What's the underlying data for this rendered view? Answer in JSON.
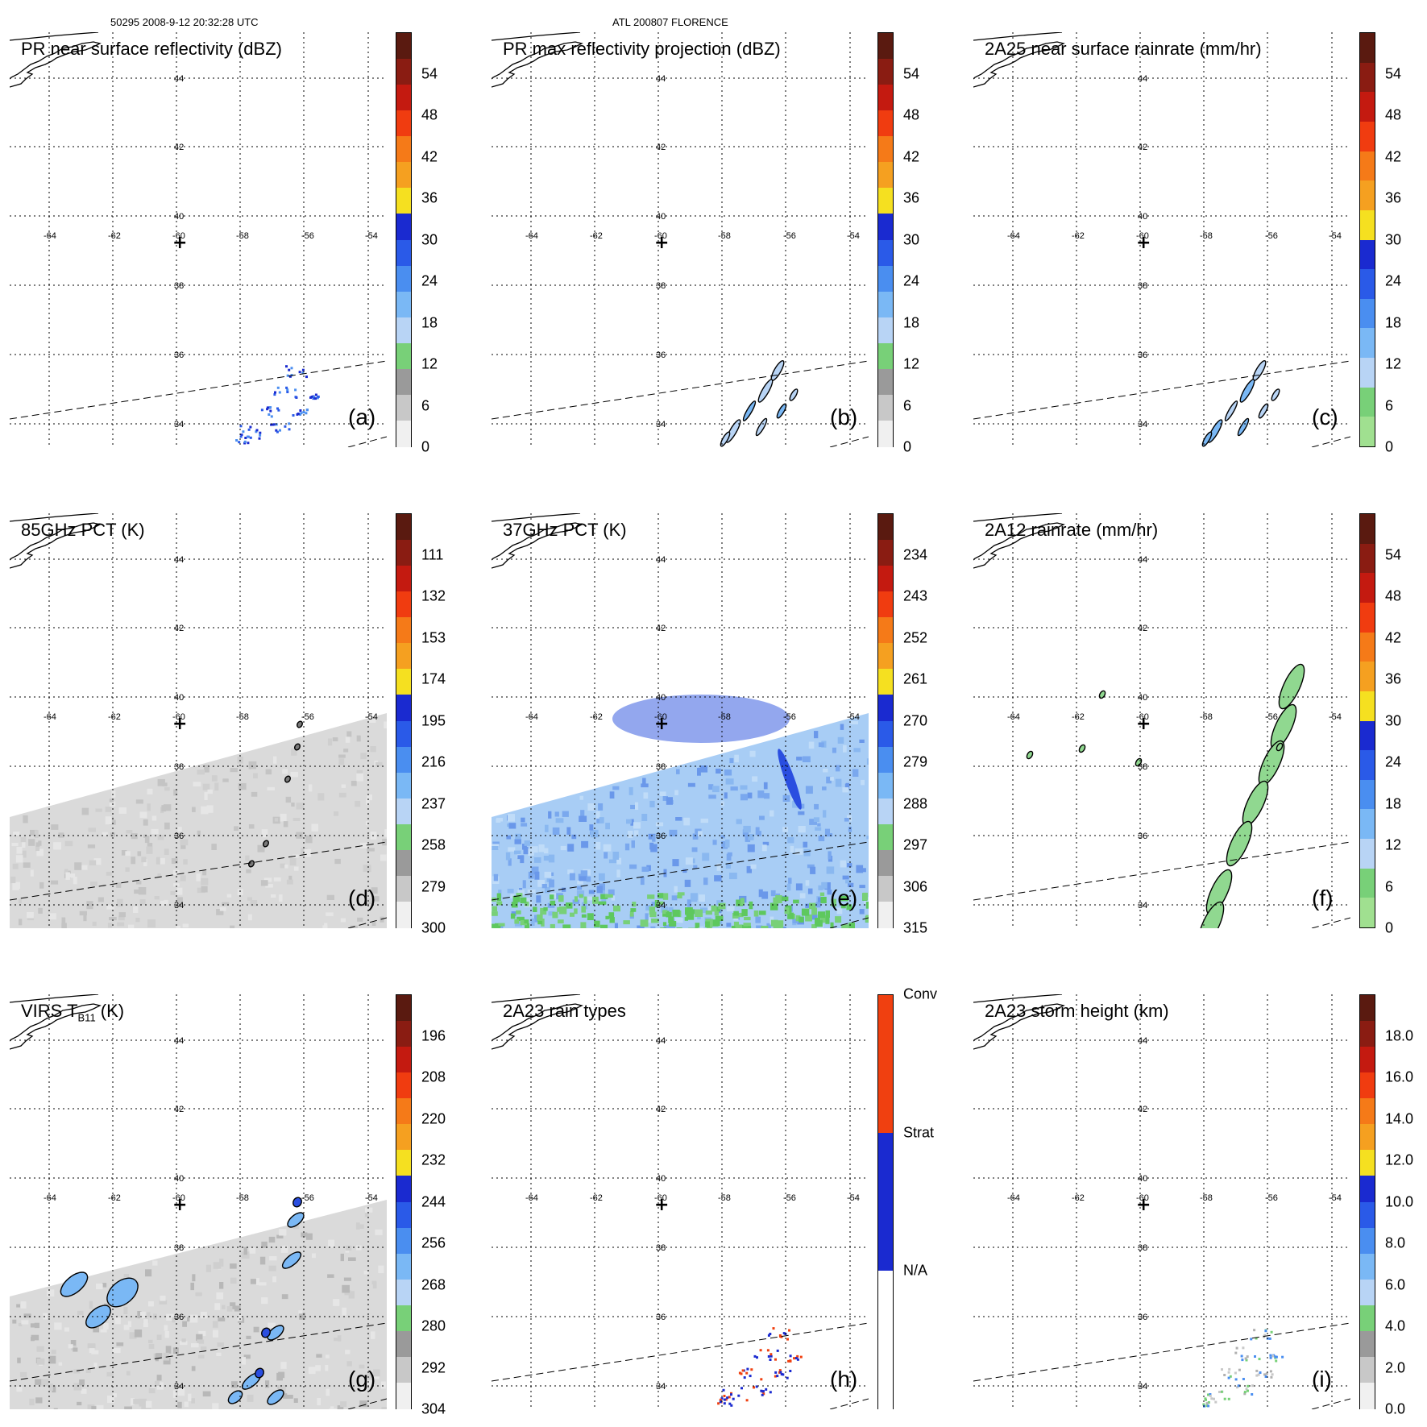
{
  "header": {
    "left": "50295 2008-9-12 20:32:28 UTC",
    "center": "ATL 200807 FLORENCE"
  },
  "map": {
    "longitudes": [
      "-64",
      "-62",
      "-60",
      "-58",
      "-56",
      "-54"
    ],
    "latitudes": [
      "44",
      "42",
      "40",
      "38",
      "36",
      "34"
    ],
    "center_marker": "+"
  },
  "panels": [
    {
      "id": "a",
      "title": "PR near surface reflectivity (dBZ)",
      "label": "(a)",
      "ticks": [
        "54",
        "48",
        "42",
        "36",
        "30",
        "24",
        "18",
        "12",
        "6",
        "0"
      ],
      "colors": [
        "#5a1a10",
        "#8a1c12",
        "#c41a10",
        "#f03c10",
        "#f57a18",
        "#f5a020",
        "#f5e020",
        "#1a2ad0",
        "#2a5ae8",
        "#4a8ef0",
        "#7ab8f5",
        "#b8d4f5",
        "#78d078",
        "#9a9a9a",
        "#c8c8c8",
        "#f0f0f0"
      ],
      "content": "sparse"
    },
    {
      "id": "b",
      "title": "PR max reflectivity projection (dBZ)",
      "label": "(b)",
      "ticks": [
        "54",
        "48",
        "42",
        "36",
        "30",
        "24",
        "18",
        "12",
        "6",
        "0"
      ],
      "colors": [
        "#5a1a10",
        "#8a1c12",
        "#c41a10",
        "#f03c10",
        "#f57a18",
        "#f5a020",
        "#f5e020",
        "#1a2ad0",
        "#2a5ae8",
        "#4a8ef0",
        "#7ab8f5",
        "#b8d4f5",
        "#78d078",
        "#9a9a9a",
        "#c8c8c8",
        "#f0f0f0"
      ],
      "content": "sparse-outline"
    },
    {
      "id": "c",
      "title": "2A25 near surface rainrate (mm/hr)",
      "label": "(c)",
      "ticks": [
        "54",
        "48",
        "42",
        "36",
        "30",
        "24",
        "18",
        "12",
        "6",
        "0"
      ],
      "colors": [
        "#5a1a10",
        "#8a1c12",
        "#c41a10",
        "#f03c10",
        "#f57a18",
        "#f5a020",
        "#f5e020",
        "#1a2ad0",
        "#2a5ae8",
        "#4a8ef0",
        "#7ab8f5",
        "#b8d4f5",
        "#78d078",
        "#a0e090"
      ],
      "content": "sparse-outline"
    },
    {
      "id": "d",
      "title": "85GHz PCT (K)",
      "label": "(d)",
      "ticks": [
        "111",
        "132",
        "153",
        "174",
        "195",
        "216",
        "237",
        "258",
        "279",
        "300"
      ],
      "colors": [
        "#5a1a10",
        "#8a1c12",
        "#c41a10",
        "#f03c10",
        "#f57a18",
        "#f5a020",
        "#f5e020",
        "#1a2ad0",
        "#2a5ae8",
        "#4a8ef0",
        "#7ab8f5",
        "#b8d4f5",
        "#78d078",
        "#9a9a9a",
        "#c8c8c8",
        "#f0f0f0"
      ],
      "content": "swath-gray"
    },
    {
      "id": "e",
      "title": "37GHz PCT (K)",
      "label": "(e)",
      "ticks": [
        "234",
        "243",
        "252",
        "261",
        "270",
        "279",
        "288",
        "297",
        "306",
        "315"
      ],
      "colors": [
        "#5a1a10",
        "#8a1c12",
        "#c41a10",
        "#f03c10",
        "#f57a18",
        "#f5a020",
        "#f5e020",
        "#1a2ad0",
        "#2a5ae8",
        "#4a8ef0",
        "#7ab8f5",
        "#b8d4f5",
        "#78d078",
        "#9a9a9a",
        "#c8c8c8",
        "#f0f0f0"
      ],
      "content": "swath-blue"
    },
    {
      "id": "f",
      "title": "2A12 rainrate (mm/hr)",
      "label": "(f)",
      "ticks": [
        "54",
        "48",
        "42",
        "36",
        "30",
        "24",
        "18",
        "12",
        "6",
        "0"
      ],
      "colors": [
        "#5a1a10",
        "#8a1c12",
        "#c41a10",
        "#f03c10",
        "#f57a18",
        "#f5a020",
        "#f5e020",
        "#1a2ad0",
        "#2a5ae8",
        "#4a8ef0",
        "#7ab8f5",
        "#b8d4f5",
        "#78d078",
        "#a0e090"
      ],
      "content": "band-green"
    },
    {
      "id": "g",
      "title": "VIRS T",
      "title_sub": "B11",
      "title_tail": " (K)",
      "label": "(g)",
      "ticks": [
        "196",
        "208",
        "220",
        "232",
        "244",
        "256",
        "268",
        "280",
        "292",
        "304"
      ],
      "colors": [
        "#5a1a10",
        "#8a1c12",
        "#c41a10",
        "#f03c10",
        "#f57a18",
        "#f5a020",
        "#f5e020",
        "#1a2ad0",
        "#2a5ae8",
        "#4a8ef0",
        "#7ab8f5",
        "#b8d4f5",
        "#78d078",
        "#9a9a9a",
        "#c8c8c8",
        "#f0f0f0"
      ],
      "content": "swath-ir"
    },
    {
      "id": "h",
      "title": "2A23 rain types",
      "label": "(h)",
      "ticks": [
        "Conv",
        "Strat",
        "N/A"
      ],
      "colors": [
        "#f04010",
        "#1a2ad0",
        "#ffffff"
      ],
      "content": "sparse-types"
    },
    {
      "id": "i",
      "title": "2A23 storm height (km)",
      "label": "(i)",
      "ticks": [
        "18.0",
        "16.0",
        "14.0",
        "12.0",
        "10.0",
        "8.0",
        "6.0",
        "4.0",
        "2.0",
        "0.0"
      ],
      "colors": [
        "#5a1a10",
        "#8a1c12",
        "#c41a10",
        "#f03c10",
        "#f57a18",
        "#f5a020",
        "#f5e020",
        "#1a2ad0",
        "#2a5ae8",
        "#4a8ef0",
        "#7ab8f5",
        "#b8d4f5",
        "#78d078",
        "#9a9a9a",
        "#c8c8c8",
        "#f0f0f0"
      ],
      "content": "sparse-gray"
    }
  ]
}
